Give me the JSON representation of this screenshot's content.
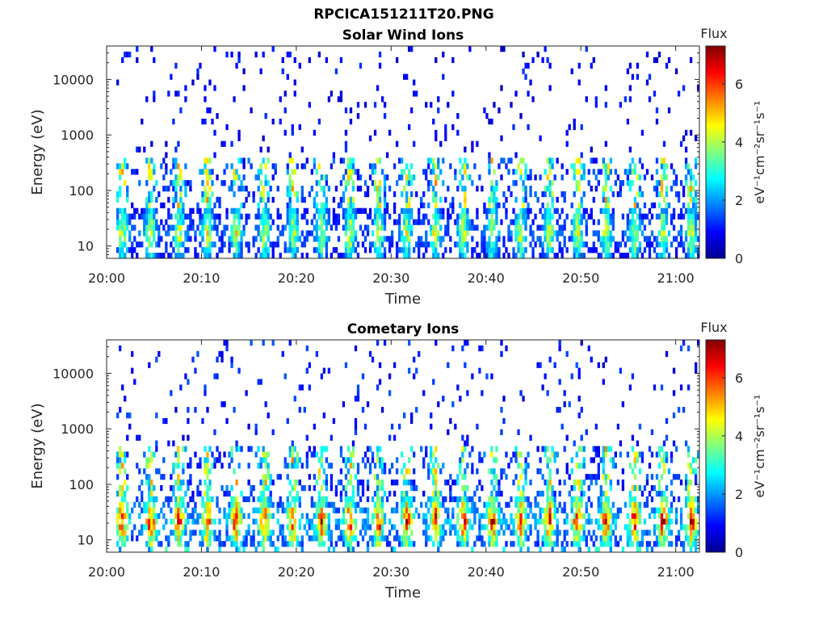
{
  "figure": {
    "filename": "RPCICA151211T20.PNG"
  },
  "chart_data": [
    {
      "type": "heatmap",
      "title": "Solar Wind Ions",
      "xlabel": "Time",
      "ylabel": "Energy (eV)",
      "yscale": "log",
      "ylim": [
        6,
        40000
      ],
      "xlim_minutes": [
        0,
        62.5
      ],
      "xticks": [
        "20:00",
        "20:10",
        "20:20",
        "20:30",
        "20:40",
        "20:50",
        "21:00"
      ],
      "xtick_minutes": [
        0,
        10,
        20,
        30,
        40,
        50,
        60
      ],
      "yticks": [
        "10",
        "100",
        "1000",
        "10000"
      ],
      "ytick_values": [
        10,
        100,
        1000,
        10000
      ],
      "colorbar": {
        "label": "Flux",
        "units": "eV⁻¹cm⁻²sr⁻¹s⁻¹",
        "range": [
          0,
          7.3
        ],
        "ticks": [
          "0",
          "2",
          "4",
          "6"
        ],
        "tick_values": [
          0,
          2,
          4,
          6
        ],
        "colormap": "jet"
      },
      "features": {
        "band_energy_range_eV": [
          6,
          50
        ],
        "band_peak_flux": 4.5,
        "sparse_high_energy_flux": 1.0,
        "periodicity_minutes": 3
      }
    },
    {
      "type": "heatmap",
      "title": "Cometary Ions",
      "xlabel": "Time",
      "ylabel": "Energy (eV)",
      "yscale": "log",
      "ylim": [
        6,
        40000
      ],
      "xlim_minutes": [
        0,
        62.5
      ],
      "xticks": [
        "20:00",
        "20:10",
        "20:20",
        "20:30",
        "20:40",
        "20:50",
        "21:00"
      ],
      "xtick_minutes": [
        0,
        10,
        20,
        30,
        40,
        50,
        60
      ],
      "yticks": [
        "10",
        "100",
        "1000",
        "10000"
      ],
      "ytick_values": [
        10,
        100,
        1000,
        10000
      ],
      "colorbar": {
        "label": "Flux",
        "units": "eV⁻¹cm⁻²sr⁻¹s⁻¹",
        "range": [
          0,
          7.3
        ],
        "ticks": [
          "0",
          "2",
          "4",
          "6"
        ],
        "tick_values": [
          0,
          2,
          4,
          6
        ],
        "colormap": "jet"
      },
      "features": {
        "band_energy_range_eV": [
          8,
          60
        ],
        "band_peak_flux": 6.5,
        "sparse_high_energy_flux": 1.2,
        "periodicity_minutes": 3
      }
    }
  ]
}
